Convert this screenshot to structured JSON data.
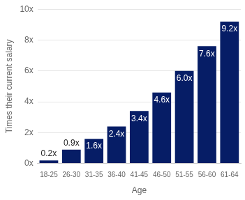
{
  "chart_data": {
    "type": "bar",
    "xlabel": "Age",
    "ylabel": "Times their current salary",
    "categories": [
      "18-25",
      "26-30",
      "31-35",
      "36-40",
      "41-45",
      "46-50",
      "51-55",
      "56-60",
      "61-64"
    ],
    "values": [
      0.2,
      0.9,
      1.6,
      2.4,
      3.4,
      4.6,
      6.0,
      7.6,
      9.2
    ],
    "value_labels": [
      "0.2x",
      "0.9x",
      "1.6x",
      "2.4x",
      "3.4x",
      "4.6x",
      "6.0x",
      "7.6x",
      "9.2x"
    ],
    "color": "#061d66",
    "ylim": [
      0,
      10
    ],
    "yticks": [
      {
        "value": 0,
        "label": "0x"
      },
      {
        "value": 2,
        "label": "2x"
      },
      {
        "value": 4,
        "label": "4x"
      },
      {
        "value": 6,
        "label": "6x"
      },
      {
        "value": 8,
        "label": "8x"
      },
      {
        "value": 10,
        "label": "10x"
      }
    ],
    "grid": true,
    "data_labels": true
  }
}
